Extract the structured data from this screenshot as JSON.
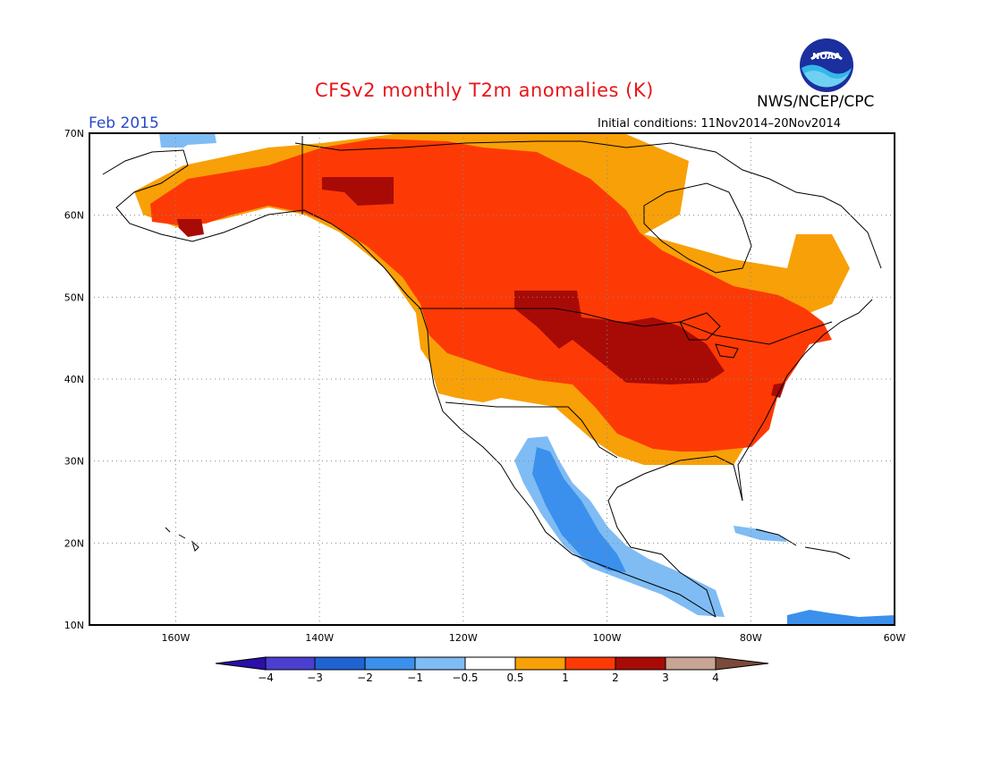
{
  "title": "CFSv2 monthly T2m anomalies (K)",
  "agency": "NWS/NCEP/CPC",
  "valid_month": "Feb 2015",
  "initial_conditions": "Initial conditions: 11Nov2014–20Nov2014",
  "logo_text": "NOAA",
  "map": {
    "lat_labels": [
      "70N",
      "60N",
      "50N",
      "40N",
      "30N",
      "20N",
      "10N"
    ],
    "lon_labels": [
      "160W",
      "140W",
      "120W",
      "100W",
      "80W",
      "60W"
    ],
    "lat_range": [
      10,
      70
    ],
    "lon_range": [
      -172,
      -60
    ],
    "grid": "dotted"
  },
  "colorbar": {
    "labels": [
      "−4",
      "−3",
      "−2",
      "−1",
      "−0.5",
      "0.5",
      "1",
      "2",
      "3",
      "4"
    ],
    "colors": [
      "#2a0fa8",
      "#4a3fd0",
      "#1f63d3",
      "#3a90ec",
      "#7fbcf4",
      "#ffffff",
      "#f8a007",
      "#fd3a05",
      "#a80b06",
      "#c9a394",
      "#7a4a3a"
    ],
    "edges": [
      -4,
      -3,
      -2,
      -1,
      -0.5,
      0.5,
      1,
      2,
      3,
      4
    ]
  },
  "colors": {
    "title": "#e8161b",
    "valid_month": "#2a49c9",
    "warm_1": "#f8a007",
    "warm_2": "#fd3a05",
    "warm_3": "#a80b06",
    "cool_1": "#7fbcf4",
    "cool_2": "#3a90ec",
    "cool_3": "#1f63d3",
    "cool_4": "#2a0fa8"
  }
}
